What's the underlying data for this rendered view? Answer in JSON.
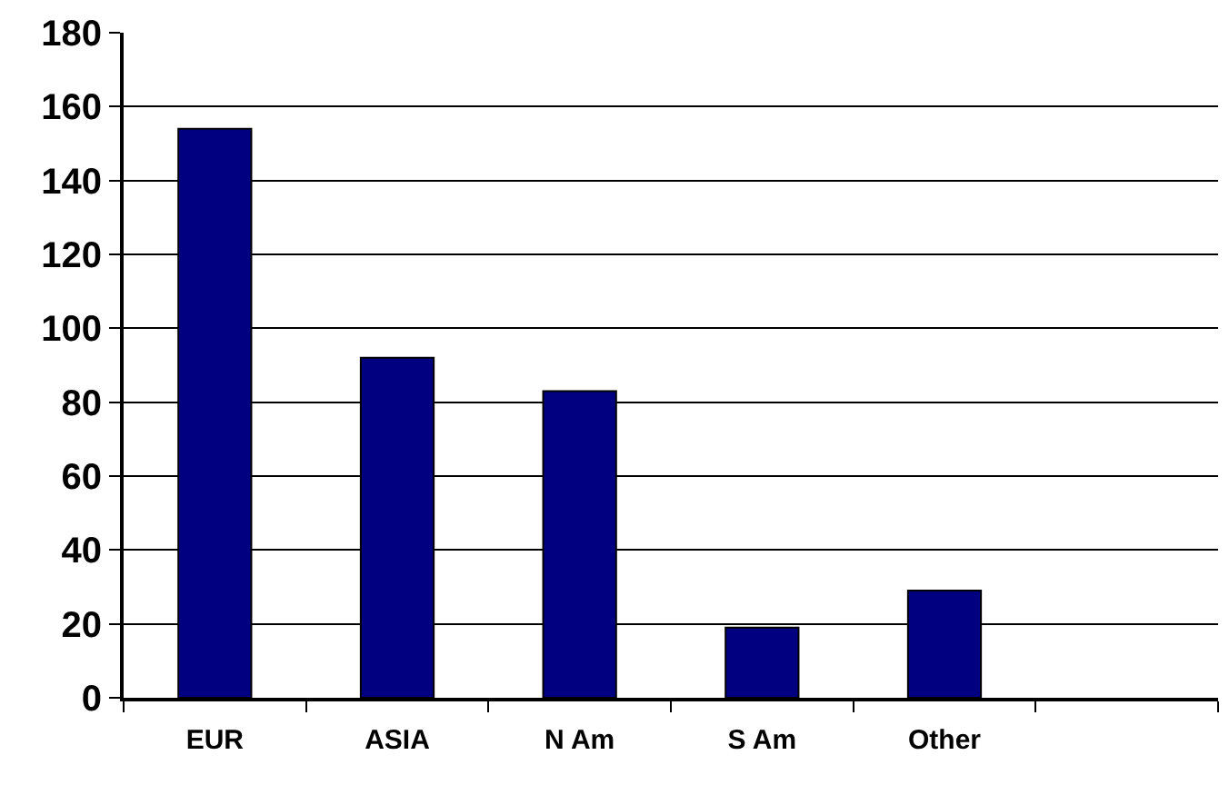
{
  "chart_data": {
    "type": "bar",
    "categories": [
      "EUR",
      "ASIA",
      "N Am",
      "S Am",
      "Other",
      null
    ],
    "values": [
      154,
      92,
      83,
      19,
      29,
      null
    ],
    "color": "#000080",
    "ylim": [
      0,
      180
    ],
    "yticks": [
      0,
      20,
      40,
      60,
      80,
      100,
      120,
      140,
      160,
      180
    ],
    "grid": "y"
  }
}
